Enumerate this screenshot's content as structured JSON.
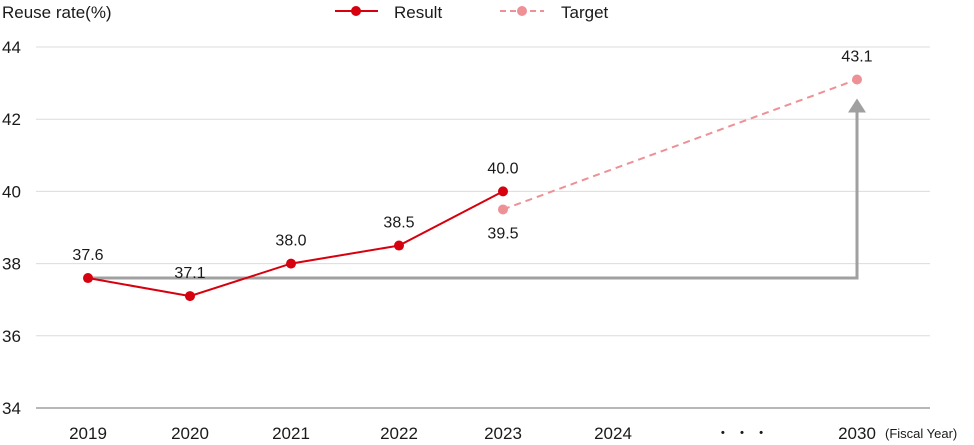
{
  "chart_data": {
    "type": "line",
    "ylabel": "Reuse rate(%)",
    "xlabel": "(Fiscal Year)",
    "ylim": [
      34,
      44
    ],
    "yticks": [
      34,
      36,
      38,
      40,
      42,
      44
    ],
    "categories": [
      "2019",
      "2020",
      "2021",
      "2022",
      "2023",
      "2024",
      "2030"
    ],
    "ellipsis": "・ ・ ・",
    "grid": true,
    "legend_position": "top-center",
    "series": [
      {
        "name": "Result",
        "color": "#d7000f",
        "style": "solid",
        "points": [
          {
            "x": "2019",
            "y": 37.6,
            "label": "37.6"
          },
          {
            "x": "2020",
            "y": 37.1,
            "label": "37.1"
          },
          {
            "x": "2021",
            "y": 38.0,
            "label": "38.0"
          },
          {
            "x": "2022",
            "y": 38.5,
            "label": "38.5"
          },
          {
            "x": "2023",
            "y": 40.0,
            "label": "40.0"
          }
        ]
      },
      {
        "name": "Target",
        "color": "#ee9196",
        "style": "dashed",
        "points": [
          {
            "x": "2023",
            "y": 39.5,
            "label": "39.5"
          },
          {
            "x": "2030",
            "y": 43.1,
            "label": "43.1"
          }
        ]
      }
    ],
    "annotation": {
      "type": "arrow",
      "color": "#a0a0a0",
      "from": {
        "x": "2019",
        "y": 37.6
      },
      "to": {
        "x": "2030",
        "y": 43.1
      }
    }
  }
}
